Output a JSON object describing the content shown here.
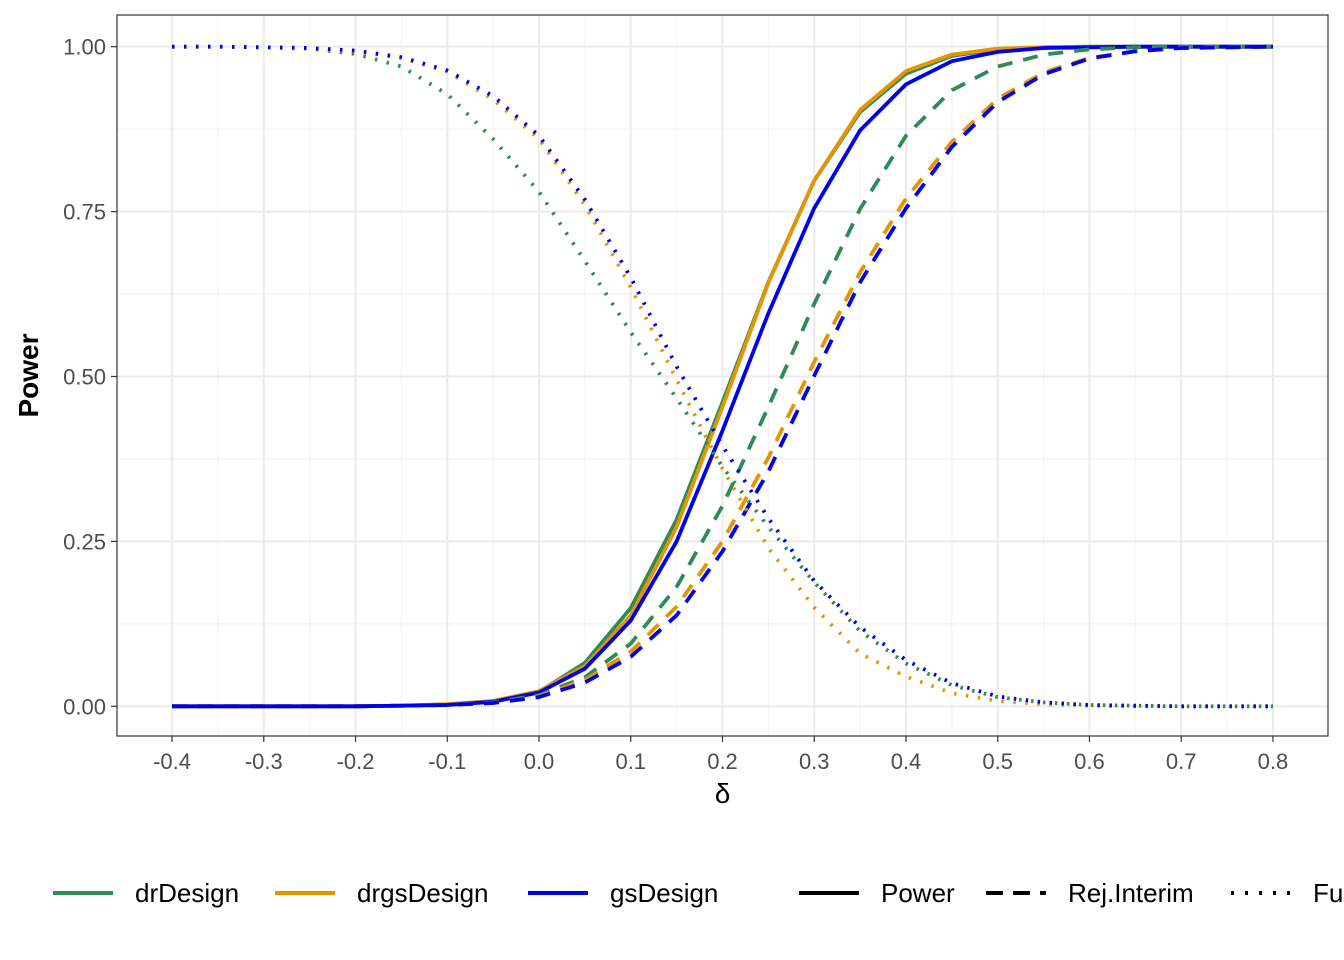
{
  "chart_data": {
    "type": "line",
    "xlabel": "δ",
    "ylabel": "Power",
    "xlim": [
      -0.46,
      0.86
    ],
    "ylim": [
      -0.045,
      1.048
    ],
    "x_ticks": [
      -0.4,
      -0.3,
      -0.2,
      -0.1,
      0.0,
      0.1,
      0.2,
      0.3,
      0.4,
      0.5,
      0.6,
      0.7,
      0.8
    ],
    "x_tick_labels": [
      "-0.4",
      "-0.3",
      "-0.2",
      "-0.1",
      "0.0",
      "0.1",
      "0.2",
      "0.3",
      "0.4",
      "0.5",
      "0.6",
      "0.7",
      "0.8"
    ],
    "y_ticks": [
      0,
      0.25,
      0.5,
      0.75,
      1.0
    ],
    "y_tick_labels": [
      "0.00",
      "0.25",
      "0.50",
      "0.75",
      "1.00"
    ],
    "grid": true,
    "legend_position": "bottom",
    "x": [
      -0.4,
      -0.35,
      -0.3,
      -0.25,
      -0.2,
      -0.15,
      -0.1,
      -0.05,
      0.0,
      0.05,
      0.1,
      0.15,
      0.2,
      0.25,
      0.3,
      0.35,
      0.4,
      0.45,
      0.5,
      0.55,
      0.6,
      0.65,
      0.7,
      0.75,
      0.8
    ],
    "colors": {
      "drDesign": "#2e8b57",
      "drgsDesign": "#e69500",
      "gsDesign": "#0000ee"
    },
    "color_legend": [
      "drDesign",
      "drgsDesign",
      "gsDesign"
    ],
    "linetype_legend": [
      {
        "label": "Power",
        "dash": "solid"
      },
      {
        "label": "Rej.Interim",
        "dash": "dashed"
      },
      {
        "label": "Fu",
        "dash": "dotted"
      }
    ],
    "series": [
      {
        "design": "drDesign",
        "type": "Power",
        "values": [
          0,
          0,
          0,
          0,
          0,
          0.001,
          0.003,
          0.008,
          0.022,
          0.066,
          0.149,
          0.283,
          0.461,
          0.643,
          0.797,
          0.901,
          0.959,
          0.986,
          0.996,
          0.999,
          1,
          1,
          1,
          1,
          1
        ]
      },
      {
        "design": "drgsDesign",
        "type": "Power",
        "values": [
          0,
          0,
          0,
          0,
          0,
          0.001,
          0.003,
          0.008,
          0.023,
          0.061,
          0.138,
          0.272,
          0.454,
          0.642,
          0.797,
          0.904,
          0.963,
          0.988,
          0.997,
          0.999,
          1,
          1,
          1,
          1,
          1
        ]
      },
      {
        "design": "gsDesign",
        "type": "Power",
        "values": [
          0,
          0,
          0,
          0,
          0,
          0.001,
          0.002,
          0.007,
          0.021,
          0.057,
          0.13,
          0.25,
          0.418,
          0.596,
          0.755,
          0.873,
          0.943,
          0.978,
          0.992,
          0.998,
          0.999,
          1,
          1,
          1,
          1
        ]
      },
      {
        "design": "drDesign",
        "type": "Rej.Interim",
        "values": [
          0,
          0,
          0,
          0,
          0,
          0.001,
          0.002,
          0.006,
          0.017,
          0.044,
          0.095,
          0.181,
          0.304,
          0.454,
          0.61,
          0.754,
          0.865,
          0.934,
          0.97,
          0.988,
          0.996,
          0.999,
          1,
          1,
          1
        ]
      },
      {
        "design": "drgsDesign",
        "type": "Rej.Interim",
        "values": [
          0,
          0,
          0,
          0,
          0,
          0.001,
          0.002,
          0.005,
          0.015,
          0.04,
          0.083,
          0.151,
          0.25,
          0.377,
          0.522,
          0.658,
          0.77,
          0.856,
          0.921,
          0.961,
          0.983,
          0.993,
          0.998,
          0.999,
          1
        ]
      },
      {
        "design": "gsDesign",
        "type": "Rej.Interim",
        "values": [
          0,
          0,
          0,
          0,
          0,
          0.001,
          0.002,
          0.005,
          0.014,
          0.036,
          0.075,
          0.138,
          0.235,
          0.356,
          0.501,
          0.643,
          0.755,
          0.848,
          0.916,
          0.958,
          0.982,
          0.993,
          0.998,
          0.999,
          1
        ]
      },
      {
        "design": "drDesign",
        "type": "Fu",
        "values": [
          1,
          1,
          0.999,
          0.997,
          0.989,
          0.97,
          0.928,
          0.86,
          0.78,
          0.675,
          0.567,
          0.467,
          0.363,
          0.272,
          0.188,
          0.114,
          0.065,
          0.032,
          0.014,
          0.006,
          0.002,
          0.001,
          0,
          0,
          0
        ]
      },
      {
        "design": "drgsDesign",
        "type": "Fu",
        "values": [
          1,
          1,
          0.999,
          0.998,
          0.993,
          0.983,
          0.962,
          0.92,
          0.86,
          0.76,
          0.635,
          0.495,
          0.36,
          0.24,
          0.15,
          0.08,
          0.045,
          0.02,
          0.008,
          0.003,
          0.001,
          0,
          0,
          0,
          0
        ]
      },
      {
        "design": "gsDesign",
        "type": "Fu",
        "values": [
          1,
          1,
          0.999,
          0.998,
          0.994,
          0.984,
          0.964,
          0.925,
          0.865,
          0.768,
          0.65,
          0.515,
          0.395,
          0.285,
          0.19,
          0.12,
          0.07,
          0.035,
          0.015,
          0.006,
          0.002,
          0.001,
          0,
          0,
          0
        ]
      }
    ]
  }
}
